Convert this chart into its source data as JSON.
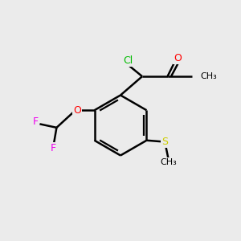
{
  "background_color": "#ebebeb",
  "bond_color": "#000000",
  "bond_width": 1.8,
  "atom_colors": {
    "O": "#ff0000",
    "Cl": "#00bb00",
    "F": "#ee00ee",
    "S": "#cccc00"
  },
  "figsize": [
    3.0,
    3.0
  ],
  "dpi": 100
}
